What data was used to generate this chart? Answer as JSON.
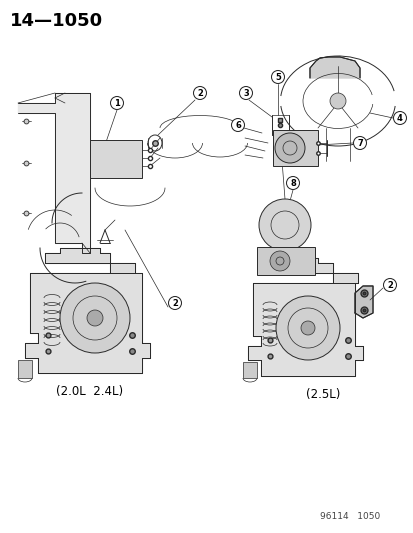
{
  "page_number": "14—1050",
  "footer": "96114   1050",
  "bg_color": "#f5f5f0",
  "line_color": "#2a2a2a",
  "label_color": "#000000",
  "title_fontsize": 13,
  "label_fontsize": 8.5,
  "footer_fontsize": 6.5,
  "bottom_left_label": "(2.0L  2.4L)",
  "bottom_right_label": "(2.5L)"
}
